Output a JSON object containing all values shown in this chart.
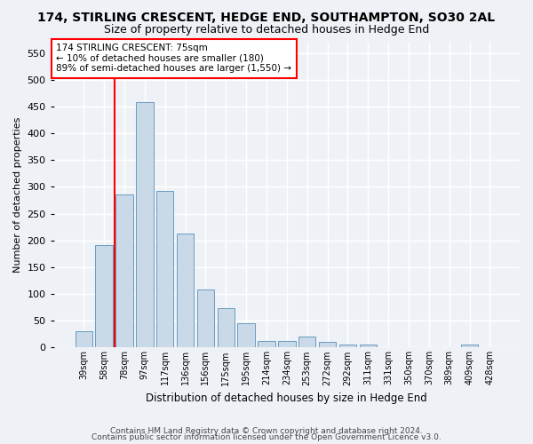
{
  "title": "174, STIRLING CRESCENT, HEDGE END, SOUTHAMPTON, SO30 2AL",
  "subtitle": "Size of property relative to detached houses in Hedge End",
  "xlabel": "Distribution of detached houses by size in Hedge End",
  "ylabel": "Number of detached properties",
  "categories": [
    "39sqm",
    "58sqm",
    "78sqm",
    "97sqm",
    "117sqm",
    "136sqm",
    "156sqm",
    "175sqm",
    "195sqm",
    "214sqm",
    "234sqm",
    "253sqm",
    "272sqm",
    "292sqm",
    "311sqm",
    "331sqm",
    "350sqm",
    "370sqm",
    "389sqm",
    "409sqm",
    "428sqm"
  ],
  "values": [
    30,
    192,
    285,
    458,
    292,
    213,
    109,
    74,
    46,
    13,
    12,
    21,
    10,
    5,
    5,
    0,
    0,
    0,
    0,
    5,
    0
  ],
  "bar_color": "#c9d9e8",
  "bar_edge_color": "#6a9bbf",
  "vline_x_index": 2,
  "vline_color": "red",
  "annotation_text": "174 STIRLING CRESCENT: 75sqm\n← 10% of detached houses are smaller (180)\n89% of semi-detached houses are larger (1,550) →",
  "annotation_box_color": "white",
  "annotation_box_edge": "red",
  "ylim": [
    0,
    570
  ],
  "yticks": [
    0,
    50,
    100,
    150,
    200,
    250,
    300,
    350,
    400,
    450,
    500,
    550
  ],
  "footer1": "Contains HM Land Registry data © Crown copyright and database right 2024.",
  "footer2": "Contains public sector information licensed under the Open Government Licence v3.0.",
  "background_color": "#eef2f7",
  "grid_color": "white",
  "title_fontsize": 10,
  "subtitle_fontsize": 9
}
